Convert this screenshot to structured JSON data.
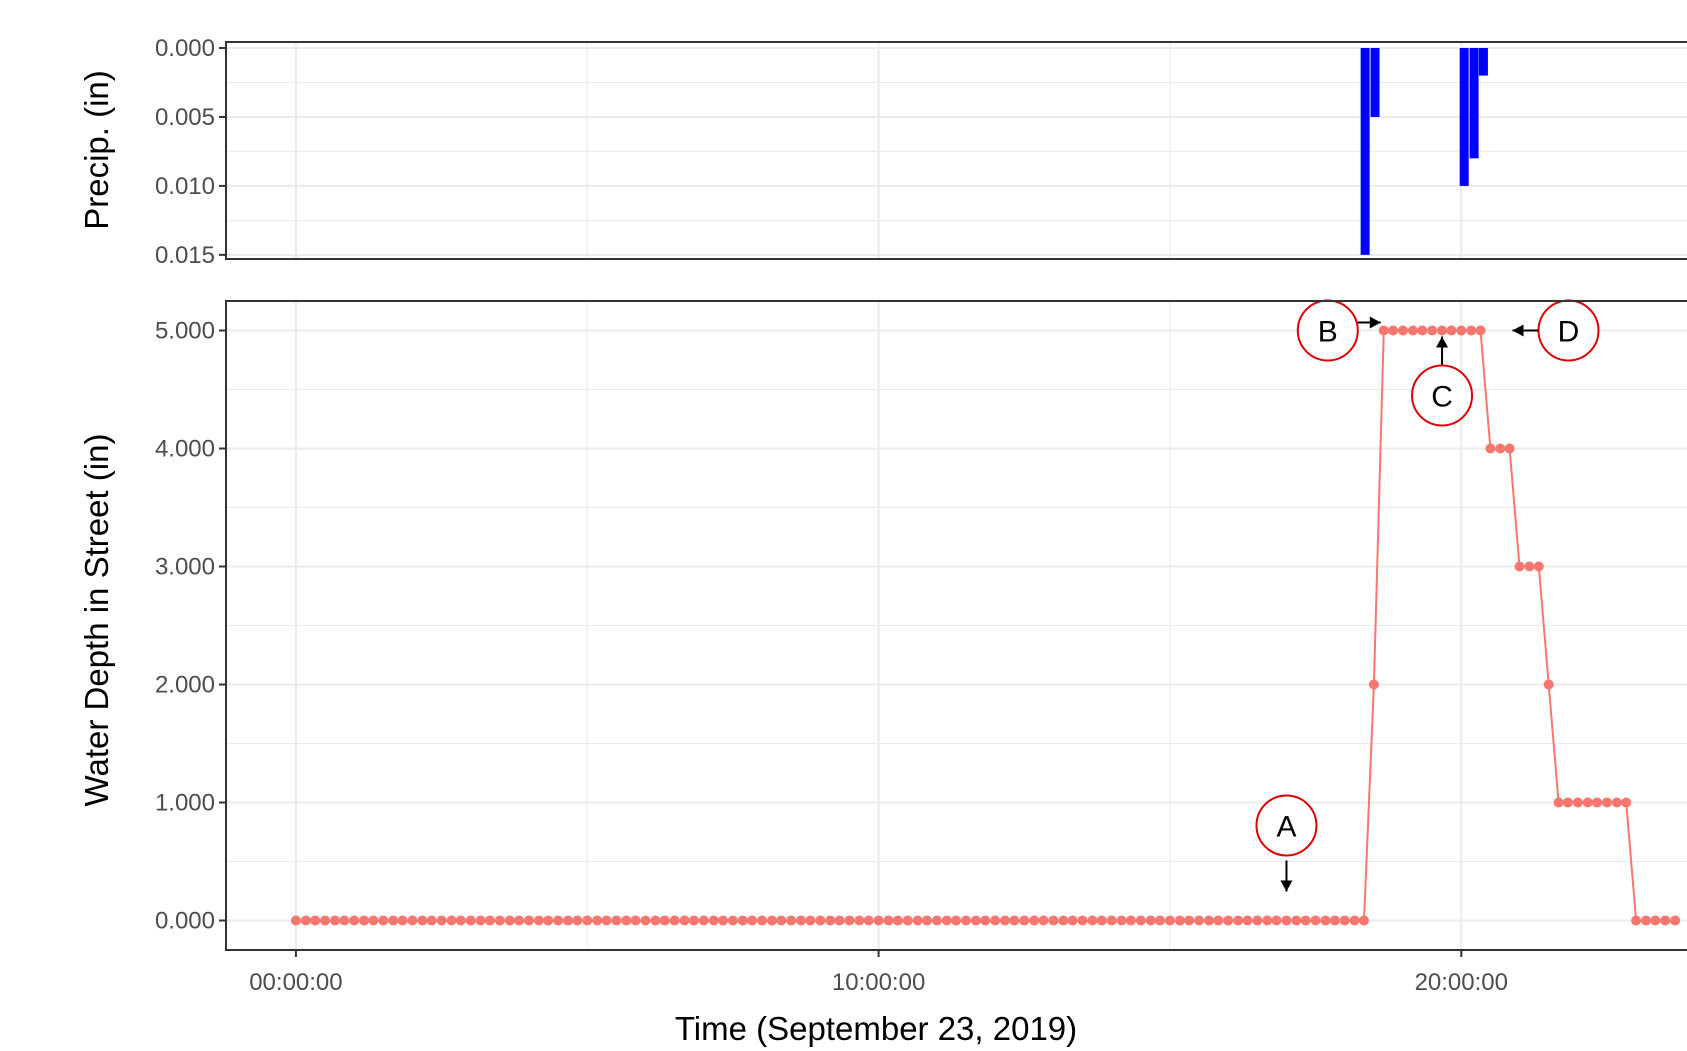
{
  "chart_data": [
    {
      "type": "bar",
      "ylabel": "Precip. (in)",
      "y_reversed": true,
      "ylim": [
        0.015,
        0.0
      ],
      "y_ticks": [
        "0.000",
        "0.005",
        "0.010",
        "0.015"
      ],
      "x_range_hours": [
        -1.2,
        24.2
      ],
      "bar_color": "#0000ff",
      "bars": [
        {
          "x": 18.35,
          "value": 0.015
        },
        {
          "x": 18.52,
          "value": 0.005
        },
        {
          "x": 20.05,
          "value": 0.01
        },
        {
          "x": 20.22,
          "value": 0.008
        },
        {
          "x": 20.38,
          "value": 0.002
        }
      ]
    },
    {
      "type": "line",
      "ylabel": "Water Depth in Street (in)",
      "xlabel": "Time (September 23, 2019)",
      "ylim": [
        -0.25,
        5.25
      ],
      "y_ticks": [
        "0.000",
        "1.000",
        "2.000",
        "3.000",
        "4.000",
        "5.000"
      ],
      "x_ticks": [
        "00:00:00",
        "10:00:00",
        "20:00:00"
      ],
      "x_range_hours": [
        -1.2,
        24.2
      ],
      "series_color": "#f8766d",
      "series": [
        {
          "points": [
            [
              0.0,
              0
            ],
            [
              0.17,
              0
            ],
            [
              0.33,
              0
            ],
            [
              0.5,
              0
            ],
            [
              0.67,
              0
            ],
            [
              0.83,
              0
            ],
            [
              1.0,
              0
            ],
            [
              1.17,
              0
            ],
            [
              1.33,
              0
            ],
            [
              1.5,
              0
            ],
            [
              1.67,
              0
            ],
            [
              1.83,
              0
            ],
            [
              2.0,
              0
            ],
            [
              2.17,
              0
            ],
            [
              2.33,
              0
            ],
            [
              2.5,
              0
            ],
            [
              2.67,
              0
            ],
            [
              2.83,
              0
            ],
            [
              3.0,
              0
            ],
            [
              3.17,
              0
            ],
            [
              3.33,
              0
            ],
            [
              3.5,
              0
            ],
            [
              3.67,
              0
            ],
            [
              3.83,
              0
            ],
            [
              4.0,
              0
            ],
            [
              4.17,
              0
            ],
            [
              4.33,
              0
            ],
            [
              4.5,
              0
            ],
            [
              4.67,
              0
            ],
            [
              4.83,
              0
            ],
            [
              5.0,
              0
            ],
            [
              5.17,
              0
            ],
            [
              5.33,
              0
            ],
            [
              5.5,
              0
            ],
            [
              5.67,
              0
            ],
            [
              5.83,
              0
            ],
            [
              6.0,
              0
            ],
            [
              6.17,
              0
            ],
            [
              6.33,
              0
            ],
            [
              6.5,
              0
            ],
            [
              6.67,
              0
            ],
            [
              6.83,
              0
            ],
            [
              7.0,
              0
            ],
            [
              7.17,
              0
            ],
            [
              7.33,
              0
            ],
            [
              7.5,
              0
            ],
            [
              7.67,
              0
            ],
            [
              7.83,
              0
            ],
            [
              8.0,
              0
            ],
            [
              8.17,
              0
            ],
            [
              8.33,
              0
            ],
            [
              8.5,
              0
            ],
            [
              8.67,
              0
            ],
            [
              8.83,
              0
            ],
            [
              9.0,
              0
            ],
            [
              9.17,
              0
            ],
            [
              9.33,
              0
            ],
            [
              9.5,
              0
            ],
            [
              9.67,
              0
            ],
            [
              9.83,
              0
            ],
            [
              10.0,
              0
            ],
            [
              10.17,
              0
            ],
            [
              10.33,
              0
            ],
            [
              10.5,
              0
            ],
            [
              10.67,
              0
            ],
            [
              10.83,
              0
            ],
            [
              11.0,
              0
            ],
            [
              11.17,
              0
            ],
            [
              11.33,
              0
            ],
            [
              11.5,
              0
            ],
            [
              11.67,
              0
            ],
            [
              11.83,
              0
            ],
            [
              12.0,
              0
            ],
            [
              12.17,
              0
            ],
            [
              12.33,
              0
            ],
            [
              12.5,
              0
            ],
            [
              12.67,
              0
            ],
            [
              12.83,
              0
            ],
            [
              13.0,
              0
            ],
            [
              13.17,
              0
            ],
            [
              13.33,
              0
            ],
            [
              13.5,
              0
            ],
            [
              13.67,
              0
            ],
            [
              13.83,
              0
            ],
            [
              14.0,
              0
            ],
            [
              14.17,
              0
            ],
            [
              14.33,
              0
            ],
            [
              14.5,
              0
            ],
            [
              14.67,
              0
            ],
            [
              14.83,
              0
            ],
            [
              15.0,
              0
            ],
            [
              15.17,
              0
            ],
            [
              15.33,
              0
            ],
            [
              15.5,
              0
            ],
            [
              15.67,
              0
            ],
            [
              15.83,
              0
            ],
            [
              16.0,
              0
            ],
            [
              16.17,
              0
            ],
            [
              16.33,
              0
            ],
            [
              16.5,
              0
            ],
            [
              16.67,
              0
            ],
            [
              16.83,
              0
            ],
            [
              17.0,
              0
            ],
            [
              17.17,
              0
            ],
            [
              17.33,
              0
            ],
            [
              17.5,
              0
            ],
            [
              17.67,
              0
            ],
            [
              17.83,
              0
            ],
            [
              18.0,
              0
            ],
            [
              18.17,
              0
            ],
            [
              18.33,
              0
            ],
            [
              18.5,
              2
            ],
            [
              18.67,
              5
            ],
            [
              18.83,
              5
            ],
            [
              19.0,
              5
            ],
            [
              19.17,
              5
            ],
            [
              19.33,
              5
            ],
            [
              19.5,
              5
            ],
            [
              19.67,
              5
            ],
            [
              19.83,
              5
            ],
            [
              20.0,
              5
            ],
            [
              20.17,
              5
            ],
            [
              20.33,
              5
            ],
            [
              20.5,
              4
            ],
            [
              20.67,
              4
            ],
            [
              20.83,
              4
            ],
            [
              21.0,
              3
            ],
            [
              21.17,
              3
            ],
            [
              21.33,
              3
            ],
            [
              21.5,
              2
            ],
            [
              21.67,
              1
            ],
            [
              21.83,
              1
            ],
            [
              22.0,
              1
            ],
            [
              22.17,
              1
            ],
            [
              22.33,
              1
            ],
            [
              22.5,
              1
            ],
            [
              22.67,
              1
            ],
            [
              22.83,
              1
            ],
            [
              23.0,
              0
            ],
            [
              23.17,
              0
            ],
            [
              23.33,
              0
            ],
            [
              23.5,
              0
            ],
            [
              23.67,
              0
            ]
          ]
        }
      ],
      "annotations": [
        {
          "label": "A",
          "x": 17.0,
          "y": 0.0
        },
        {
          "label": "B",
          "x": 18.67,
          "y": 5.0
        },
        {
          "label": "C",
          "x": 19.67,
          "y": 5.0
        },
        {
          "label": "D",
          "x": 20.33,
          "y": 5.0
        }
      ]
    }
  ]
}
